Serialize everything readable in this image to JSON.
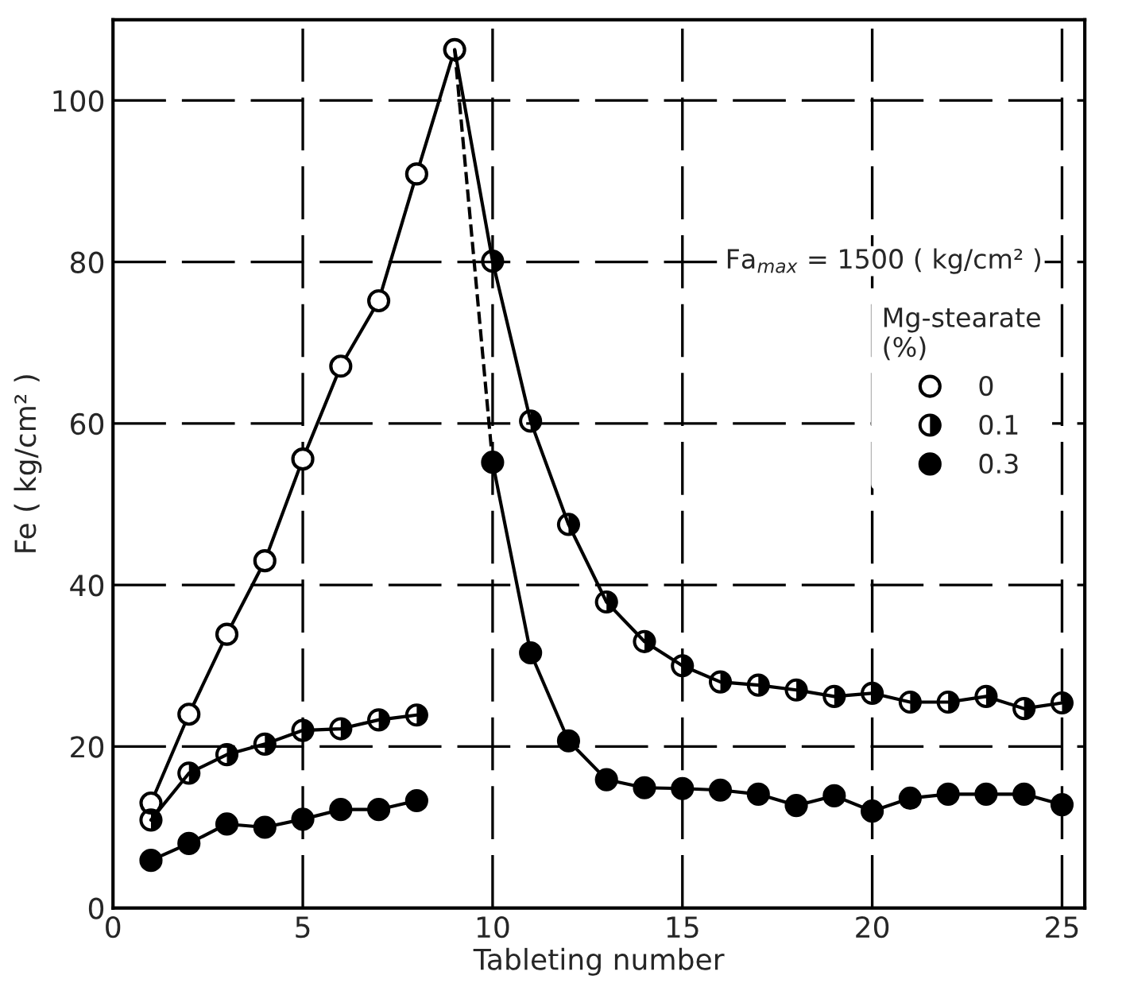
{
  "chart_data": {
    "type": "line",
    "xlabel": "Tableting number",
    "ylabel": "Fe ( kg/cm² )",
    "legend_title": "Mg-stearate\n(%)",
    "annotations": [
      "Fa$_{max}$ = 1500 ( kg/cm² )"
    ],
    "xlim": [
      0,
      25.6
    ],
    "ylim": [
      0,
      110
    ],
    "xticks": [
      0,
      5,
      10,
      15,
      20,
      25
    ],
    "yticks": [
      0,
      20,
      40,
      60,
      80,
      100
    ],
    "grid": true,
    "legend": "right",
    "marker": "circle",
    "line_style": "solid",
    "series": [
      {
        "name": "0",
        "color": "#000000",
        "x": [
          1,
          2,
          3,
          4,
          5,
          6,
          7,
          8,
          9
        ],
        "values": [
          13.0,
          24.0,
          33.9,
          43.0,
          55.6,
          67.1,
          75.2,
          90.9,
          106.3
        ]
      },
      {
        "name": "0.1",
        "color": "#000000",
        "x": [
          1,
          2,
          3,
          4,
          5,
          6,
          7,
          8,
          9,
          10,
          11,
          12,
          13,
          14,
          15,
          16,
          17,
          18,
          19,
          20,
          21,
          22,
          23,
          24,
          25
        ],
        "values": [
          10.9,
          16.7,
          19.0,
          20.3,
          22.0,
          22.2,
          23.3,
          23.9,
          null,
          80.1,
          60.3,
          47.5,
          37.9,
          33.0,
          30.0,
          28.0,
          27.6,
          27.0,
          26.2,
          26.6,
          25.5,
          25.5,
          26.2,
          24.7,
          25.4
        ]
      },
      {
        "name": "0.3",
        "color": "#000000",
        "x": [
          1,
          2,
          3,
          4,
          5,
          6,
          7,
          8,
          9,
          10,
          11,
          12,
          13,
          14,
          15,
          16,
          17,
          18,
          19,
          20,
          21,
          22,
          23,
          24,
          25
        ],
        "values": [
          5.9,
          8.0,
          10.4,
          10.0,
          11.0,
          12.2,
          12.2,
          13.3,
          null,
          55.2,
          31.6,
          20.7,
          15.9,
          14.9,
          14.8,
          14.6,
          14.1,
          12.7,
          13.9,
          12.0,
          13.6,
          14.1,
          14.1,
          14.1,
          12.8
        ]
      },
      {
        "color": "#000000",
        "x": [
          9,
          10
        ],
        "values": [
          106.3,
          80.1
        ],
        "marker": "none",
        "line_style": "solid"
      },
      {
        "color": "#000000",
        "x": [
          9,
          10
        ],
        "values": [
          106.3,
          55.2
        ],
        "marker": "none",
        "line_style": "dashed"
      }
    ]
  }
}
